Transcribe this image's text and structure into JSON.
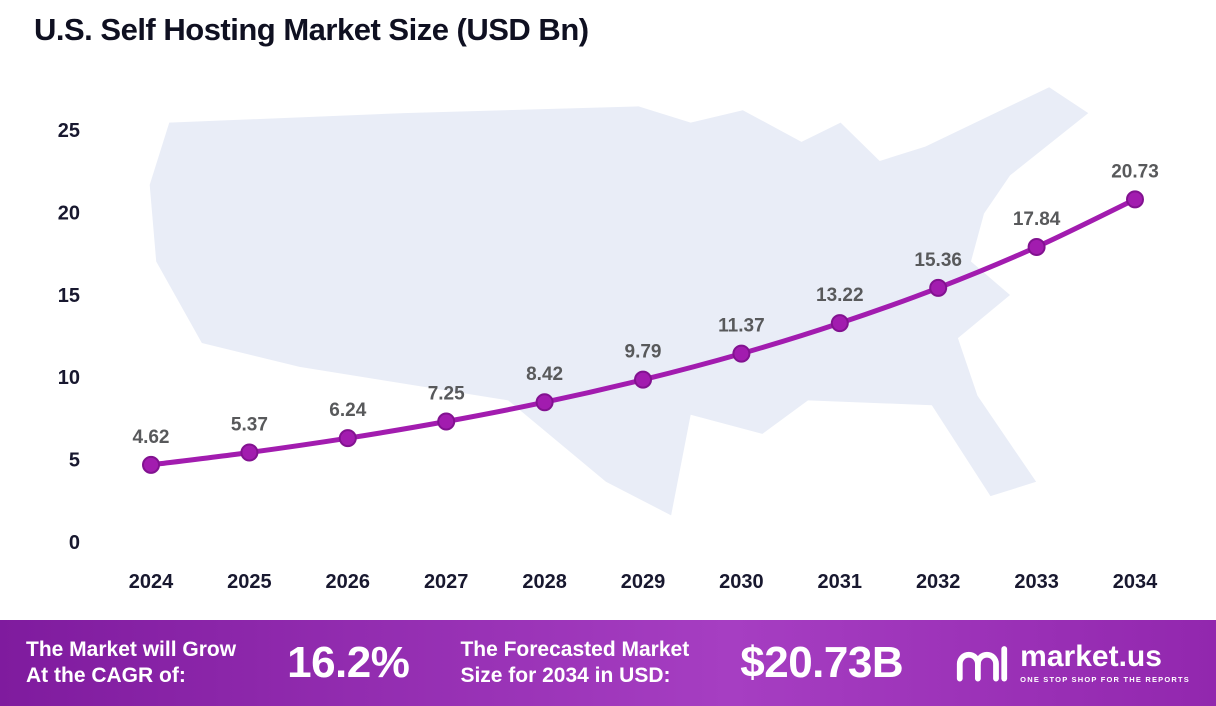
{
  "chart_data": {
    "type": "line",
    "title": "U.S. Self Hosting Market Size (USD Bn)",
    "categories": [
      "2024",
      "2025",
      "2026",
      "2027",
      "2028",
      "2029",
      "2030",
      "2031",
      "2032",
      "2033",
      "2034"
    ],
    "values": [
      4.62,
      5.37,
      6.24,
      7.25,
      8.42,
      9.79,
      11.37,
      13.22,
      15.36,
      17.84,
      20.73
    ],
    "ylim": [
      0,
      25
    ],
    "y_ticks": [
      0,
      5,
      10,
      15,
      20,
      25
    ],
    "xlabel": "",
    "ylabel": "",
    "grid": false,
    "legend": "none",
    "line_color": "#A21CAF",
    "marker_ring_color": "#821290",
    "label_color": "#58595b"
  },
  "footer": {
    "cagr_label_line1": "The Market will Grow",
    "cagr_label_line2": "At the CAGR of:",
    "cagr_value": "16.2%",
    "forecast_label_line1": "The Forecasted Market",
    "forecast_label_line2": "Size for 2034 in USD:",
    "forecast_value": "$20.73B",
    "brand_name": "market.us",
    "brand_tagline": "ONE STOP SHOP FOR THE REPORTS"
  }
}
